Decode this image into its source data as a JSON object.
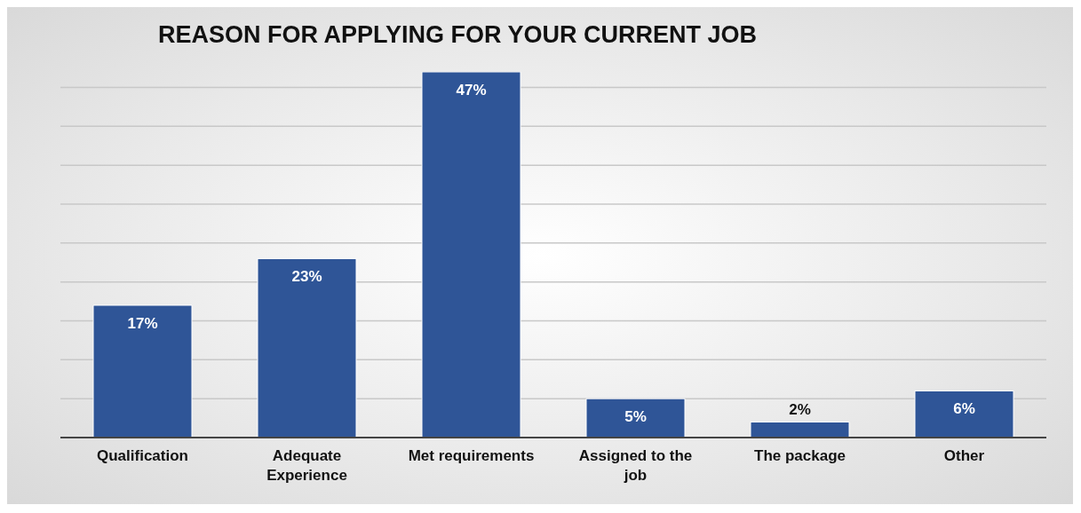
{
  "chart_data": {
    "type": "bar",
    "title": "REASON FOR APPLYING FOR YOUR CURRENT JOB",
    "categories": [
      "Qualification",
      "Adequate Experience",
      "Met requirements",
      "Assigned to the job",
      "The package",
      "Other"
    ],
    "values": [
      17,
      23,
      47,
      5,
      2,
      6
    ],
    "value_labels": [
      "17%",
      "23%",
      "47%",
      "5%",
      "2%",
      "6%"
    ],
    "color": "#2f5597",
    "yticks": [
      {
        "value": 0,
        "label": null
      },
      {
        "value": 5,
        "label": null
      },
      {
        "value": 10,
        "label": null
      },
      {
        "value": 15,
        "label": null
      },
      {
        "value": 20,
        "label": null
      },
      {
        "value": 25,
        "label": null
      },
      {
        "value": 30,
        "label": null
      },
      {
        "value": 35,
        "label": null
      },
      {
        "value": 40,
        "label": null
      },
      {
        "value": 45,
        "label": null
      }
    ],
    "grid": "y",
    "tick_labels": "x",
    "legend": false
  }
}
